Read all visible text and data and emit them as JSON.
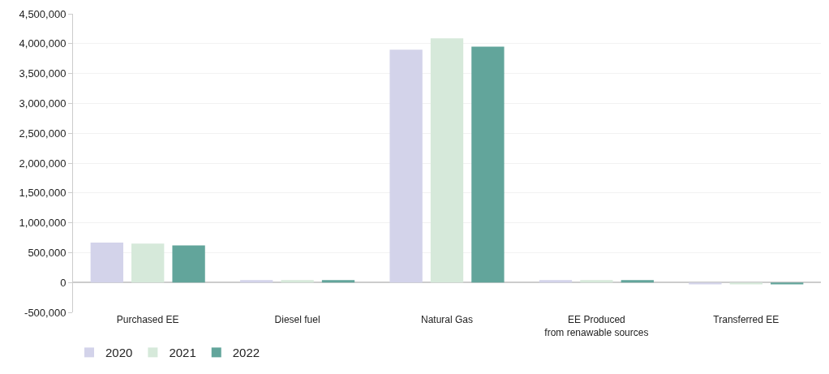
{
  "chart_data": {
    "type": "bar",
    "categories": [
      "Purchased EE",
      "Diesel fuel",
      "Natural Gas",
      "EE Produced\nfrom renawable sources",
      "Transferred EE"
    ],
    "series": [
      {
        "name": "2020",
        "color": "#d3d3ea",
        "values": [
          670000,
          40000,
          3900000,
          40000,
          -30000
        ]
      },
      {
        "name": "2021",
        "color": "#d6e9da",
        "values": [
          650000,
          40000,
          4090000,
          40000,
          -30000
        ]
      },
      {
        "name": "2022",
        "color": "#62a59b",
        "values": [
          620000,
          40000,
          3950000,
          40000,
          -30000
        ]
      }
    ],
    "ylim": [
      -500000,
      4500000
    ],
    "yticks": [
      {
        "value": -500000,
        "label": "-500,000"
      },
      {
        "value": 0,
        "label": "0"
      },
      {
        "value": 500000,
        "label": "500,000"
      },
      {
        "value": 1000000,
        "label": "1,000,000"
      },
      {
        "value": 1500000,
        "label": "1,500,000"
      },
      {
        "value": 2000000,
        "label": "2,000,000"
      },
      {
        "value": 2500000,
        "label": "2,500,000"
      },
      {
        "value": 3000000,
        "label": "3,000,000"
      },
      {
        "value": 3500000,
        "label": "3,500,000"
      },
      {
        "value": 4000000,
        "label": "4,000,000"
      },
      {
        "value": 4500000,
        "label": "4,500,000"
      }
    ],
    "grid": "y",
    "legend": "bottom left"
  }
}
